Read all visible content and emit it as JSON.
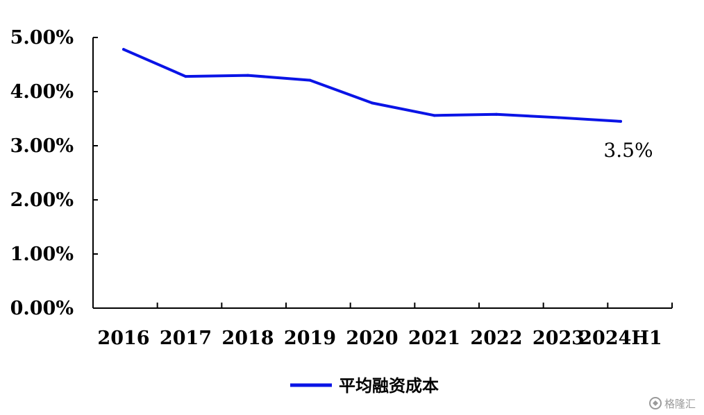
{
  "chart_data": {
    "type": "line",
    "categories": [
      "2016",
      "2017",
      "2018",
      "2019",
      "2020",
      "2021",
      "2022",
      "2023",
      "2024H1"
    ],
    "series": [
      {
        "name": "平均融资成本",
        "values": [
          4.78,
          4.28,
          4.3,
          4.21,
          3.79,
          3.56,
          3.58,
          3.52,
          3.45
        ]
      }
    ],
    "y_ticks": [
      "0.00%",
      "1.00%",
      "2.00%",
      "3.00%",
      "4.00%",
      "5.00%"
    ],
    "ylim": [
      0,
      5
    ],
    "annotation": {
      "text": "3.5%",
      "category": "2024H1"
    },
    "legend_position": "bottom",
    "grid": false,
    "colors": {
      "line": "#0a14e6",
      "axis": "#000000"
    }
  },
  "watermark": {
    "icon": "watermark-logo-icon",
    "text": "格隆汇"
  }
}
